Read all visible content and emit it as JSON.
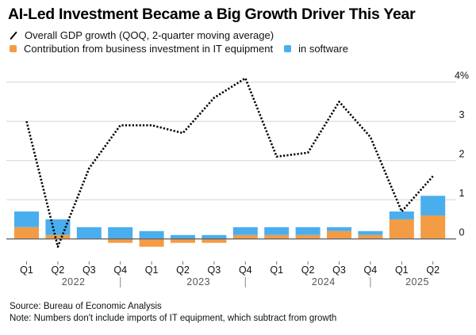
{
  "title": "AI-Led Investment Became a Big Growth Driver This Year",
  "legend": {
    "line_label": "Overall GDP growth (QOQ, 2-quarter moving average)",
    "equipment_label": "Contribution from business investment in IT equipment",
    "software_label": "in software"
  },
  "colors": {
    "equipment": "#F39C45",
    "software": "#4AAEEE",
    "line": "#000000",
    "grid": "#d9d9d9",
    "baseline": "#666666"
  },
  "footer": {
    "source": "Source: Bureau of Economic Analysis",
    "note": "Note: Numbers don't include imports of IT equipment, which subtract from growth"
  },
  "chart_data": {
    "type": "bar",
    "title": "AI-Led Investment Became a Big Growth Driver This Year",
    "xlabel": "",
    "ylabel": "",
    "ylim": [
      -0.3,
      4.2
    ],
    "yticks": [
      0,
      1,
      2,
      3,
      4
    ],
    "ytick_labels": [
      "0",
      "1",
      "2",
      "3",
      "4%"
    ],
    "grid": true,
    "legend_position": "top-left",
    "categories": [
      "Q1",
      "Q2",
      "Q3",
      "Q4",
      "Q1",
      "Q2",
      "Q3",
      "Q4",
      "Q1",
      "Q2",
      "Q3",
      "Q4",
      "Q1",
      "Q2"
    ],
    "years": [
      {
        "label": "2022",
        "start": 0,
        "end": 3
      },
      {
        "label": "2023",
        "start": 4,
        "end": 7
      },
      {
        "label": "2024",
        "start": 8,
        "end": 11
      },
      {
        "label": "2025",
        "start": 12,
        "end": 13
      }
    ],
    "series": [
      {
        "name": "Contribution from business investment in IT equipment",
        "type": "stacked-bar",
        "values": [
          0.3,
          0.1,
          0.0,
          -0.1,
          -0.2,
          -0.1,
          -0.1,
          0.1,
          0.1,
          0.1,
          0.2,
          0.1,
          0.5,
          0.6
        ]
      },
      {
        "name": "in software",
        "type": "stacked-bar",
        "values": [
          0.4,
          0.4,
          0.3,
          0.3,
          0.2,
          0.1,
          0.1,
          0.2,
          0.2,
          0.2,
          0.1,
          0.1,
          0.2,
          0.5
        ]
      },
      {
        "name": "Overall GDP growth (QOQ, 2-quarter moving average)",
        "type": "line",
        "style": "dotted",
        "values": [
          3.0,
          -0.2,
          1.8,
          2.9,
          2.9,
          2.7,
          3.6,
          4.1,
          2.1,
          2.2,
          3.5,
          2.6,
          0.7,
          1.6
        ]
      }
    ]
  }
}
